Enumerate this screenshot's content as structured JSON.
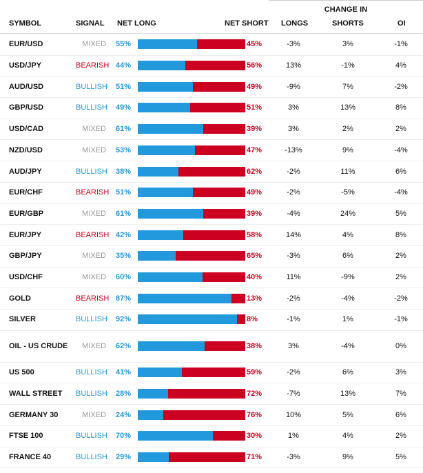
{
  "table": {
    "group_header": "CHANGE IN",
    "headers": {
      "symbol": "SYMBOL",
      "signal": "SIGNAL",
      "net_long": "NET LONG",
      "net_short": "NET SHORT",
      "longs": "LONGS",
      "shorts": "SHORTS",
      "oi": "OI"
    },
    "colors": {
      "long": "#2299dd",
      "short": "#cc0020",
      "mixed": "#999999"
    },
    "rows": [
      {
        "symbol": "EUR/USD",
        "signal": "MIXED",
        "net_long": "55%",
        "net_short": "45%",
        "long_fraction": 0.55,
        "chg_longs": "-3%",
        "chg_shorts": "3%",
        "chg_oi": "-1%"
      },
      {
        "symbol": "USD/JPY",
        "signal": "BEARISH",
        "net_long": "44%",
        "net_short": "56%",
        "long_fraction": 0.44,
        "chg_longs": "13%",
        "chg_shorts": "-1%",
        "chg_oi": "4%"
      },
      {
        "symbol": "AUD/USD",
        "signal": "BULLISH",
        "net_long": "51%",
        "net_short": "49%",
        "long_fraction": 0.51,
        "chg_longs": "-9%",
        "chg_shorts": "7%",
        "chg_oi": "-2%"
      },
      {
        "symbol": "GBP/USD",
        "signal": "BULLISH",
        "net_long": "49%",
        "net_short": "51%",
        "long_fraction": 0.49,
        "chg_longs": "3%",
        "chg_shorts": "13%",
        "chg_oi": "8%"
      },
      {
        "symbol": "USD/CAD",
        "signal": "MIXED",
        "net_long": "61%",
        "net_short": "39%",
        "long_fraction": 0.61,
        "chg_longs": "3%",
        "chg_shorts": "2%",
        "chg_oi": "2%"
      },
      {
        "symbol": "NZD/USD",
        "signal": "MIXED",
        "net_long": "53%",
        "net_short": "47%",
        "long_fraction": 0.53,
        "chg_longs": "-13%",
        "chg_shorts": "9%",
        "chg_oi": "-4%"
      },
      {
        "symbol": "AUD/JPY",
        "signal": "BULLISH",
        "net_long": "38%",
        "net_short": "62%",
        "long_fraction": 0.38,
        "chg_longs": "-2%",
        "chg_shorts": "11%",
        "chg_oi": "6%"
      },
      {
        "symbol": "EUR/CHF",
        "signal": "BEARISH",
        "net_long": "51%",
        "net_short": "49%",
        "long_fraction": 0.51,
        "chg_longs": "-2%",
        "chg_shorts": "-5%",
        "chg_oi": "-4%"
      },
      {
        "symbol": "EUR/GBP",
        "signal": "MIXED",
        "net_long": "61%",
        "net_short": "39%",
        "long_fraction": 0.61,
        "chg_longs": "-4%",
        "chg_shorts": "24%",
        "chg_oi": "5%"
      },
      {
        "symbol": "EUR/JPY",
        "signal": "BEARISH",
        "net_long": "42%",
        "net_short": "58%",
        "long_fraction": 0.42,
        "chg_longs": "14%",
        "chg_shorts": "4%",
        "chg_oi": "8%"
      },
      {
        "symbol": "GBP/JPY",
        "signal": "MIXED",
        "net_long": "35%",
        "net_short": "65%",
        "long_fraction": 0.35,
        "chg_longs": "-3%",
        "chg_shorts": "6%",
        "chg_oi": "2%"
      },
      {
        "symbol": "USD/CHF",
        "signal": "MIXED",
        "net_long": "60%",
        "net_short": "40%",
        "long_fraction": 0.6,
        "chg_longs": "11%",
        "chg_shorts": "-9%",
        "chg_oi": "2%"
      },
      {
        "symbol": "GOLD",
        "signal": "BEARISH",
        "net_long": "87%",
        "net_short": "13%",
        "long_fraction": 0.87,
        "chg_longs": "-2%",
        "chg_shorts": "-4%",
        "chg_oi": "-2%"
      },
      {
        "symbol": "SILVER",
        "signal": "BULLISH",
        "net_long": "92%",
        "net_short": "8%",
        "long_fraction": 0.92,
        "chg_longs": "-1%",
        "chg_shorts": "1%",
        "chg_oi": "-1%"
      },
      {
        "symbol": "OIL - US CRUDE",
        "signal": "MIXED",
        "net_long": "62%",
        "net_short": "38%",
        "long_fraction": 0.62,
        "chg_longs": "3%",
        "chg_shorts": "-4%",
        "chg_oi": "0%"
      },
      {
        "symbol": "US 500",
        "signal": "BULLISH",
        "net_long": "41%",
        "net_short": "59%",
        "long_fraction": 0.41,
        "chg_longs": "-2%",
        "chg_shorts": "6%",
        "chg_oi": "3%"
      },
      {
        "symbol": "WALL STREET",
        "signal": "BULLISH",
        "net_long": "28%",
        "net_short": "72%",
        "long_fraction": 0.28,
        "chg_longs": "-7%",
        "chg_shorts": "13%",
        "chg_oi": "7%"
      },
      {
        "symbol": "GERMANY 30",
        "signal": "MIXED",
        "net_long": "24%",
        "net_short": "76%",
        "long_fraction": 0.24,
        "chg_longs": "10%",
        "chg_shorts": "5%",
        "chg_oi": "6%"
      },
      {
        "symbol": "FTSE 100",
        "signal": "BULLISH",
        "net_long": "70%",
        "net_short": "30%",
        "long_fraction": 0.7,
        "chg_longs": "1%",
        "chg_shorts": "4%",
        "chg_oi": "2%"
      },
      {
        "symbol": "FRANCE 40",
        "signal": "BULLISH",
        "net_long": "29%",
        "net_short": "71%",
        "long_fraction": 0.29,
        "chg_longs": "-3%",
        "chg_shorts": "9%",
        "chg_oi": "5%"
      }
    ]
  }
}
